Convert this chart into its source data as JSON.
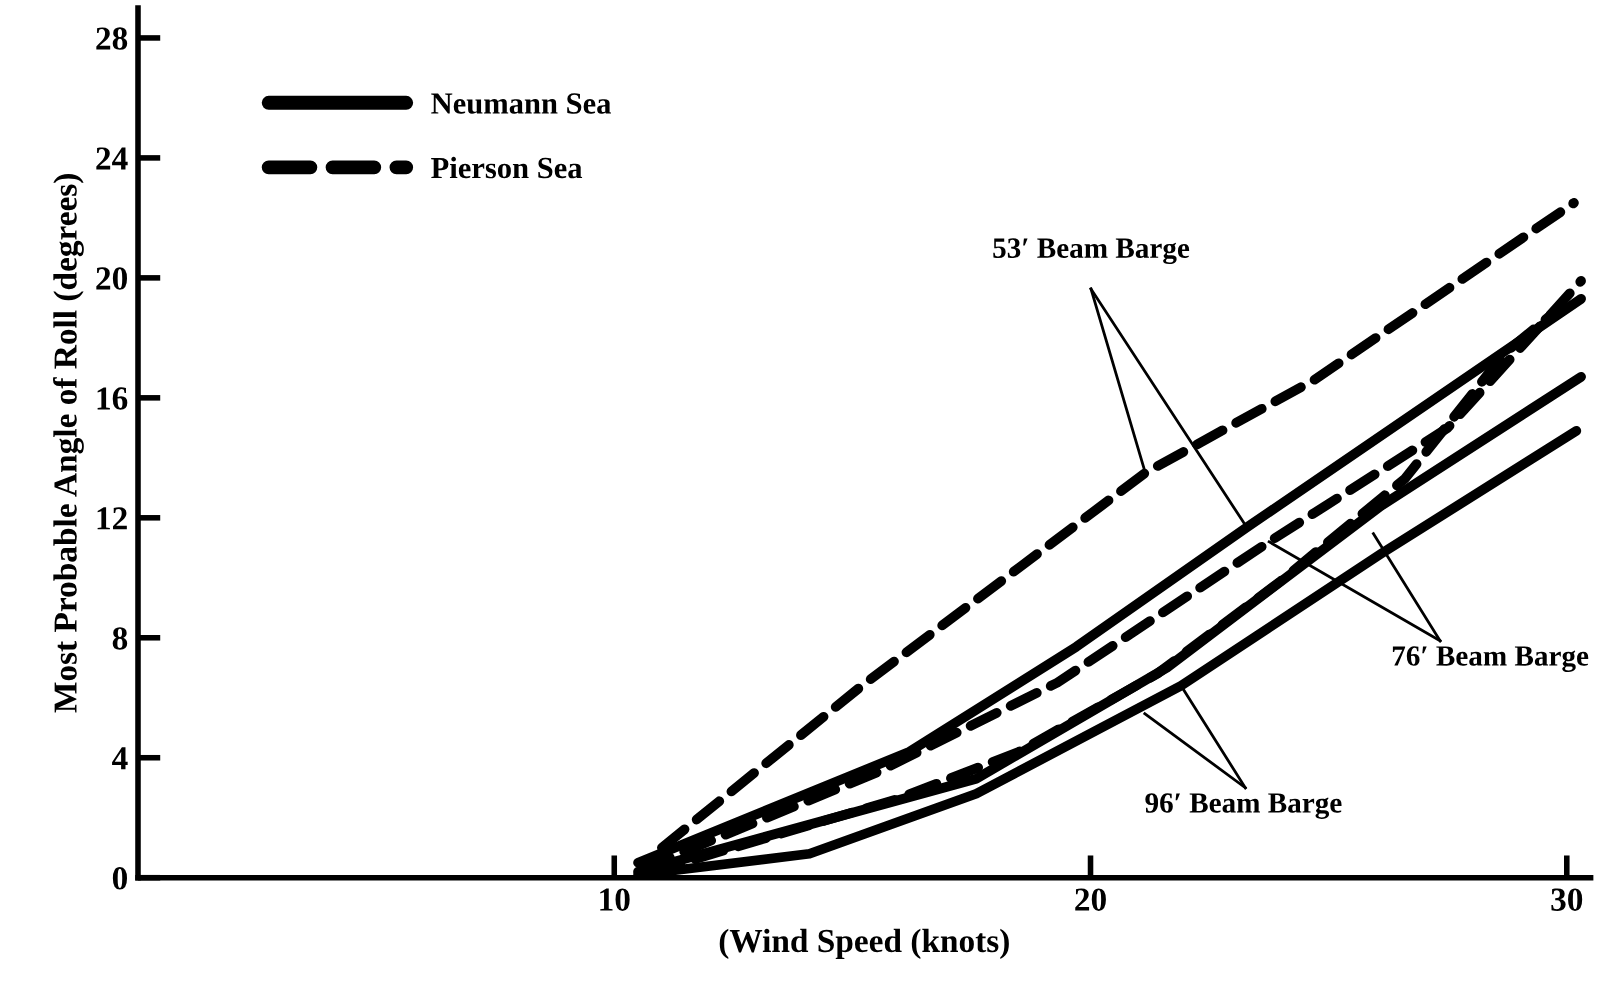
{
  "chart_data": {
    "type": "line",
    "xlabel": "(Wind Speed (knots)",
    "ylabel": "Most Probable Angle of Roll (degrees)",
    "series": [
      {
        "name": "Neumann Sea",
        "color": "#000000",
        "line_style": "solid",
        "x": [
          10.5,
          16.2,
          19.7,
          23.3,
          30.3
        ],
        "values": [
          0.5,
          4.2,
          7.7,
          11.7,
          19.3
        ]
      },
      {
        "name": "Pierson Sea",
        "color": "#000000",
        "line_style": "dashed",
        "x": [
          11,
          15.2,
          21.15,
          24.7,
          30.15
        ],
        "values": [
          1,
          6.4,
          13.5,
          16.6,
          22.5
        ]
      },
      {
        "color": "#000000",
        "line_style": "solid",
        "x": [
          10.5,
          17.6,
          21.6,
          26.1,
          30.3
        ],
        "values": [
          0.2,
          3.3,
          7.0,
          12.4,
          16.7
        ]
      },
      {
        "color": "#000000",
        "line_style": "dashed",
        "x": [
          10.6,
          15.5,
          19.3,
          23.75,
          27.5,
          30.3
        ],
        "values": [
          0.3,
          3.5,
          6.5,
          11.2,
          15.0,
          19.9
        ]
      },
      {
        "color": "#000000",
        "line_style": "solid",
        "x": [
          10.5,
          14.1,
          17.6,
          21.9,
          26.1,
          30.2
        ],
        "values": [
          0.1,
          0.8,
          2.8,
          6.4,
          10.8,
          14.9
        ]
      },
      {
        "color": "#000000",
        "line_style": "dashed",
        "x": [
          10.8,
          15.9,
          18.5,
          21.4,
          24.0,
          26.6,
          28.7,
          29.7
        ],
        "values": [
          0.2,
          2.6,
          4.2,
          6.8,
          9.9,
          13.3,
          17.5,
          18.8
        ]
      }
    ],
    "annotations": [
      {
        "text": "53′ Beam Barge",
        "x": 21.15,
        "y": 13.5
      },
      {
        "text": "76′ Beam Barge",
        "x": 23.75,
        "y": 11.2
      },
      {
        "text": "96′ Beam Barge",
        "x": 21.9,
        "y": 6.4
      }
    ],
    "xlim": [
      0,
      30.5
    ],
    "ylim": [
      0,
      29
    ],
    "xticks": [
      10,
      20,
      30
    ],
    "yticks": [
      0,
      4,
      8,
      12,
      16,
      20,
      24,
      28
    ],
    "grid": false,
    "legend": "top left",
    "marker": "none"
  }
}
